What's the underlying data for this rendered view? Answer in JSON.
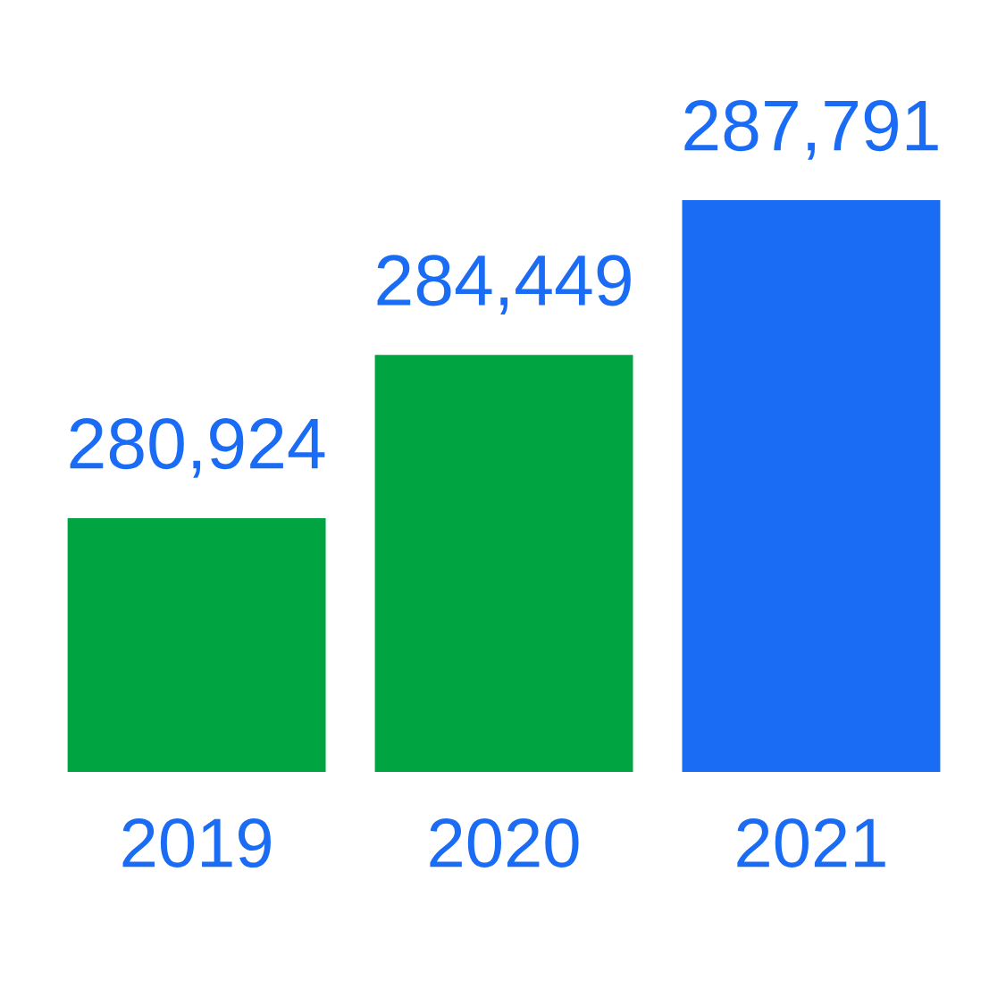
{
  "chart_data": {
    "type": "bar",
    "categories": [
      "2019",
      "2020",
      "2021"
    ],
    "values": [
      280924,
      284449,
      287791
    ],
    "colors": [
      "#00a542",
      "#00a542",
      "#1a6cf5"
    ],
    "value_labels": [
      "280,924",
      "284,449",
      "287,791"
    ],
    "ylim": [
      275446,
      287791
    ],
    "tick_labels": "x",
    "grid": false,
    "legend": false
  }
}
